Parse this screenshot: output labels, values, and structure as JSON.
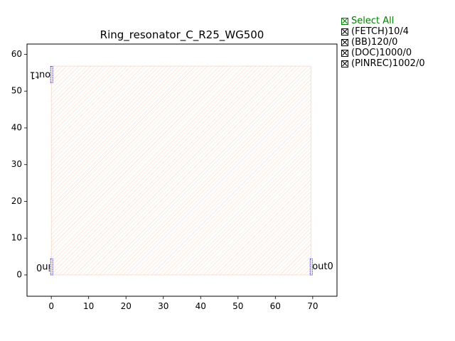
{
  "chart_data": {
    "type": "diagram",
    "title": "Ring_resonator_C_R25_WG500",
    "xlabel": "",
    "ylabel": "",
    "xlim": [
      -6.5,
      76.5
    ],
    "ylim": [
      -5.8,
      62.8
    ],
    "xticks": [
      0,
      10,
      20,
      30,
      40,
      50,
      60,
      70
    ],
    "yticks": [
      0,
      10,
      20,
      30,
      40,
      50,
      60
    ],
    "grid": false,
    "region": {
      "x0": 0,
      "y0": 0,
      "x1": 69.5,
      "y1": 56.8,
      "hatch": "#f5c9b0"
    },
    "ports": [
      {
        "name": "in0",
        "x": 0,
        "y": 2.2,
        "y0": 0,
        "y1": 4.4,
        "label_side": "left"
      },
      {
        "name": "out1",
        "x": 0,
        "y": 54.5,
        "y0": 52.3,
        "y1": 56.7,
        "label_side": "left"
      },
      {
        "name": "out0",
        "x": 69.5,
        "y": 2.2,
        "y0": 0,
        "y1": 4.4,
        "label_side": "right"
      }
    ],
    "port_color": "#0000cc"
  },
  "legend": {
    "select_all": "Select All",
    "items": [
      "(FETCH)10/4",
      "(BB)120/0",
      "(DOC)1000/0",
      "(PINREC)1002/0"
    ],
    "accent": "#008000"
  }
}
